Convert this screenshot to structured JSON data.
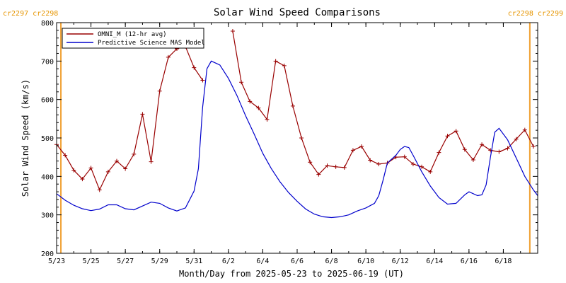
{
  "chart_data": {
    "type": "line",
    "title": "Solar Wind Speed Comparisons",
    "xlabel": "Month/Day from 2025-05-23 to 2025-06-19 (UT)",
    "ylabel": "Solar Wind Speed (km/s)",
    "ylim": [
      200,
      800
    ],
    "yticks": [
      200,
      300,
      400,
      500,
      600,
      700,
      800
    ],
    "xlim": [
      "2025-05-23",
      "2025-06-20"
    ],
    "xticks": [
      {
        "date": "2025-05-23",
        "label": "5/23"
      },
      {
        "date": "2025-05-25",
        "label": "5/25"
      },
      {
        "date": "2025-05-27",
        "label": "5/27"
      },
      {
        "date": "2025-05-29",
        "label": "5/29"
      },
      {
        "date": "2025-05-31",
        "label": "5/31"
      },
      {
        "date": "2025-06-02",
        "label": "6/2"
      },
      {
        "date": "2025-06-04",
        "label": "6/4"
      },
      {
        "date": "2025-06-06",
        "label": "6/6"
      },
      {
        "date": "2025-06-08",
        "label": "6/8"
      },
      {
        "date": "2025-06-10",
        "label": "6/10"
      },
      {
        "date": "2025-06-12",
        "label": "6/12"
      },
      {
        "date": "2025-06-14",
        "label": "6/14"
      },
      {
        "date": "2025-06-16",
        "label": "6/16"
      },
      {
        "date": "2025-06-18",
        "label": "6/18"
      }
    ],
    "carrington_markers": [
      {
        "date": "2025-05-23 06:00",
        "left_label": "cr2297",
        "right_label": "cr2298",
        "position": "left"
      },
      {
        "date": "2025-06-19 13:00",
        "left_label": "cr2298",
        "right_label": "cr2299",
        "position": "right"
      }
    ],
    "legend": {
      "position": "top-left"
    },
    "grid": false,
    "series": [
      {
        "name": "OMNI_M (12-hr avg)",
        "color": "#990000",
        "marker": "+",
        "segments": [
          [
            [
              "2025-05-23 00:00",
              483
            ],
            [
              "2025-05-23 12:00",
              455
            ],
            [
              "2025-05-24 00:00",
              416
            ],
            [
              "2025-05-24 12:00",
              393
            ],
            [
              "2025-05-25 00:00",
              422
            ],
            [
              "2025-05-25 12:00",
              365
            ],
            [
              "2025-05-26 00:00",
              412
            ],
            [
              "2025-05-26 12:00",
              440
            ],
            [
              "2025-05-27 00:00",
              420
            ],
            [
              "2025-05-27 12:00",
              458
            ],
            [
              "2025-05-28 00:00",
              562
            ],
            [
              "2025-05-28 12:00",
              438
            ],
            [
              "2025-05-29 00:00",
              622
            ],
            [
              "2025-05-29 12:00",
              710
            ],
            [
              "2025-05-30 00:00",
              732
            ],
            [
              "2025-05-30 12:00",
              738
            ],
            [
              "2025-05-31 00:00",
              683
            ],
            [
              "2025-05-31 12:00",
              650
            ]
          ],
          [
            [
              "2025-06-02 06:00",
              778
            ],
            [
              "2025-06-02 18:00",
              645
            ],
            [
              "2025-06-03 06:00",
              595
            ],
            [
              "2025-06-03 18:00",
              578
            ],
            [
              "2025-06-04 06:00",
              548
            ],
            [
              "2025-06-04 18:00",
              700
            ],
            [
              "2025-06-05 06:00",
              688
            ],
            [
              "2025-06-05 18:00",
              583
            ],
            [
              "2025-06-06 06:00",
              500
            ],
            [
              "2025-06-06 18:00",
              437
            ],
            [
              "2025-06-07 06:00",
              405
            ],
            [
              "2025-06-07 18:00",
              428
            ],
            [
              "2025-06-08 06:00",
              425
            ],
            [
              "2025-06-08 18:00",
              423
            ],
            [
              "2025-06-09 06:00",
              468
            ],
            [
              "2025-06-09 18:00",
              478
            ],
            [
              "2025-06-10 06:00",
              442
            ],
            [
              "2025-06-10 18:00",
              432
            ],
            [
              "2025-06-11 06:00",
              435
            ],
            [
              "2025-06-11 18:00",
              450
            ],
            [
              "2025-06-12 06:00",
              451
            ],
            [
              "2025-06-12 18:00",
              432
            ],
            [
              "2025-06-13 06:00",
              425
            ],
            [
              "2025-06-13 18:00",
              412
            ],
            [
              "2025-06-14 06:00",
              462
            ],
            [
              "2025-06-14 18:00",
              505
            ],
            [
              "2025-06-15 06:00",
              518
            ],
            [
              "2025-06-15 18:00",
              470
            ],
            [
              "2025-06-16 06:00",
              443
            ],
            [
              "2025-06-16 18:00",
              483
            ],
            [
              "2025-06-17 06:00",
              468
            ],
            [
              "2025-06-17 18:00",
              464
            ],
            [
              "2025-06-18 06:00",
              473
            ],
            [
              "2025-06-18 18:00",
              497
            ],
            [
              "2025-06-19 06:00",
              521
            ],
            [
              "2025-06-19 18:00",
              478
            ]
          ]
        ]
      },
      {
        "name": "Predictive Science MAS Model",
        "color": "#0000cc",
        "marker": "",
        "segments": [
          [
            [
              "2025-05-23 00:00",
              355
            ],
            [
              "2025-05-23 12:00",
              338
            ],
            [
              "2025-05-24 00:00",
              325
            ],
            [
              "2025-05-24 12:00",
              316
            ],
            [
              "2025-05-25 00:00",
              311
            ],
            [
              "2025-05-25 12:00",
              315
            ],
            [
              "2025-05-26 00:00",
              326
            ],
            [
              "2025-05-26 12:00",
              326
            ],
            [
              "2025-05-27 00:00",
              316
            ],
            [
              "2025-05-27 12:00",
              313
            ],
            [
              "2025-05-28 00:00",
              323
            ],
            [
              "2025-05-28 12:00",
              333
            ],
            [
              "2025-05-29 00:00",
              330
            ],
            [
              "2025-05-29 12:00",
              318
            ],
            [
              "2025-05-30 00:00",
              310
            ],
            [
              "2025-05-30 12:00",
              318
            ],
            [
              "2025-05-31 00:00",
              362
            ],
            [
              "2025-05-31 06:00",
              420
            ],
            [
              "2025-05-31 12:00",
              580
            ],
            [
              "2025-05-31 18:00",
              680
            ],
            [
              "2025-06-01 00:00",
              700
            ],
            [
              "2025-06-01 12:00",
              690
            ],
            [
              "2025-06-02 00:00",
              655
            ],
            [
              "2025-06-02 12:00",
              610
            ],
            [
              "2025-06-03 00:00",
              558
            ],
            [
              "2025-06-03 12:00",
              510
            ],
            [
              "2025-06-04 00:00",
              460
            ],
            [
              "2025-06-04 12:00",
              420
            ],
            [
              "2025-06-05 00:00",
              386
            ],
            [
              "2025-06-05 12:00",
              358
            ],
            [
              "2025-06-06 00:00",
              335
            ],
            [
              "2025-06-06 12:00",
              315
            ],
            [
              "2025-06-07 00:00",
              302
            ],
            [
              "2025-06-07 12:00",
              295
            ],
            [
              "2025-06-08 00:00",
              293
            ],
            [
              "2025-06-08 12:00",
              295
            ],
            [
              "2025-06-09 00:00",
              300
            ],
            [
              "2025-06-09 12:00",
              310
            ],
            [
              "2025-06-10 00:00",
              318
            ],
            [
              "2025-06-10 12:00",
              330
            ],
            [
              "2025-06-10 18:00",
              350
            ],
            [
              "2025-06-11 00:00",
              390
            ],
            [
              "2025-06-11 06:00",
              435
            ],
            [
              "2025-06-11 18:00",
              455
            ],
            [
              "2025-06-12 00:00",
              470
            ],
            [
              "2025-06-12 06:00",
              478
            ],
            [
              "2025-06-12 12:00",
              475
            ],
            [
              "2025-06-12 18:00",
              455
            ],
            [
              "2025-06-13 06:00",
              412
            ],
            [
              "2025-06-13 18:00",
              375
            ],
            [
              "2025-06-14 06:00",
              345
            ],
            [
              "2025-06-14 18:00",
              328
            ],
            [
              "2025-06-15 06:00",
              330
            ],
            [
              "2025-06-15 18:00",
              352
            ],
            [
              "2025-06-16 00:00",
              360
            ],
            [
              "2025-06-16 12:00",
              350
            ],
            [
              "2025-06-16 18:00",
              352
            ],
            [
              "2025-06-17 00:00",
              378
            ],
            [
              "2025-06-17 06:00",
              450
            ],
            [
              "2025-06-17 12:00",
              515
            ],
            [
              "2025-06-17 18:00",
              525
            ],
            [
              "2025-06-18 06:00",
              495
            ],
            [
              "2025-06-18 18:00",
              448
            ],
            [
              "2025-06-19 06:00",
              400
            ],
            [
              "2025-06-19 18:00",
              365
            ],
            [
              "2025-06-20 00:00",
              350
            ]
          ]
        ]
      }
    ]
  }
}
